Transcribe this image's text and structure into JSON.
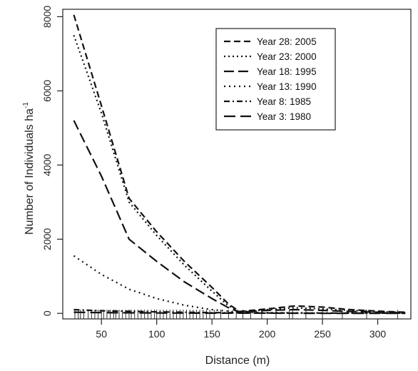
{
  "chart_data": {
    "type": "line",
    "title": "",
    "xlabel": "Distance (m)",
    "ylabel": "Number of Individuals ha",
    "ylabel_superscript": "-1",
    "xlim": [
      15,
      330
    ],
    "ylim": [
      -150,
      8200
    ],
    "xticks": [
      50,
      100,
      150,
      200,
      250,
      300
    ],
    "yticks": [
      0,
      2000,
      4000,
      6000,
      8000
    ],
    "grid": false,
    "legend_position": "top-right",
    "series": [
      {
        "name": "Year 28: 2005",
        "style": "dashed",
        "x": [
          25,
          50,
          75,
          100,
          125,
          150,
          165,
          175,
          200,
          225,
          250,
          275,
          300,
          325
        ],
        "y": [
          8050,
          5600,
          3100,
          2200,
          1400,
          700,
          250,
          50,
          120,
          200,
          170,
          100,
          60,
          30
        ]
      },
      {
        "name": "Year 23: 2000",
        "style": "dotted",
        "x": [
          25,
          50,
          75,
          100,
          125,
          150,
          165,
          175,
          200,
          225,
          250,
          275,
          300,
          325
        ],
        "y": [
          7500,
          5400,
          3000,
          2100,
          1300,
          600,
          200,
          40,
          100,
          150,
          120,
          80,
          50,
          20
        ]
      },
      {
        "name": "Year 18: 1995",
        "style": "long-dash",
        "x": [
          25,
          50,
          75,
          100,
          125,
          150,
          165,
          175,
          200,
          225,
          250,
          275,
          300,
          325
        ],
        "y": [
          5200,
          3700,
          2000,
          1400,
          850,
          400,
          150,
          30,
          80,
          100,
          80,
          50,
          30,
          10
        ]
      },
      {
        "name": "Year 13: 1990",
        "style": "dotted-sparse",
        "x": [
          25,
          50,
          75,
          100,
          125,
          150,
          175,
          200,
          250,
          325
        ],
        "y": [
          1550,
          1050,
          650,
          400,
          220,
          100,
          30,
          20,
          10,
          5
        ]
      },
      {
        "name": "Year 8: 1985",
        "style": "dash-dot",
        "x": [
          25,
          50,
          100,
          150,
          200,
          250,
          325
        ],
        "y": [
          100,
          70,
          40,
          20,
          10,
          5,
          5
        ]
      },
      {
        "name": "Year 3: 1980",
        "style": "long-dash-wide",
        "x": [
          25,
          50,
          100,
          150,
          200,
          250,
          325
        ],
        "y": [
          30,
          20,
          10,
          5,
          5,
          0,
          0
        ]
      }
    ],
    "rug_x": [
      26,
      29,
      31,
      34,
      38,
      41,
      44,
      47,
      50,
      52,
      55,
      58,
      61,
      63,
      66,
      69,
      72,
      75,
      77,
      80,
      83,
      86,
      89,
      92,
      95,
      98,
      100,
      103,
      106,
      109,
      112,
      115,
      118,
      121,
      124,
      127,
      130,
      133,
      136,
      139,
      142,
      145,
      148,
      152,
      158,
      165,
      172,
      178,
      185,
      195,
      208,
      220,
      223,
      235,
      250,
      268,
      290,
      318
    ]
  }
}
